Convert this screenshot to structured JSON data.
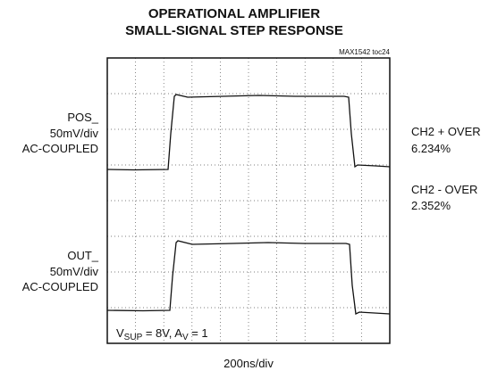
{
  "chart_data": {
    "type": "scope",
    "title": [
      "OPERATIONAL AMPLIFIER",
      "SMALL-SIGNAL STEP RESPONSE"
    ],
    "figure_id": "MAX1542 toc24",
    "channels": [
      {
        "name": "POS_",
        "scale": "50mV/div",
        "coupling": "AC-COUPLED"
      },
      {
        "name": "OUT_",
        "scale": "50mV/div",
        "coupling": "AC-COUPLED"
      }
    ],
    "measurements": [
      {
        "label": "CH2 + OVER",
        "value": "6.234%"
      },
      {
        "label": "CH2 - OVER",
        "value": "2.352%"
      }
    ],
    "annotation": [
      {
        "text": "V"
      },
      {
        "text": "SUP",
        "sub": true
      },
      {
        "text": " = 8V, A"
      },
      {
        "text": "V",
        "sub": true
      },
      {
        "text": " = 1"
      }
    ],
    "xlabel": "200ns/div"
  }
}
